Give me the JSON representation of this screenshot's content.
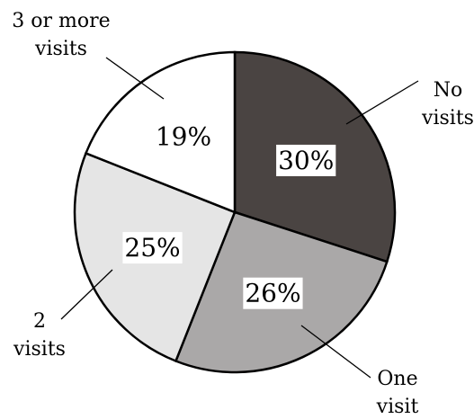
{
  "chart_data": {
    "type": "pie",
    "slices": [
      {
        "label_lines": [
          "No",
          "visits"
        ],
        "value": 30,
        "value_label": "30%",
        "color": "#4a4442"
      },
      {
        "label_lines": [
          "One",
          "visit"
        ],
        "value": 26,
        "value_label": "26%",
        "color": "#aaa8a8"
      },
      {
        "label_lines": [
          "2",
          "visits"
        ],
        "value": 25,
        "value_label": "25%",
        "color": "#e5e5e5"
      },
      {
        "label_lines": [
          "3 or more",
          "visits"
        ],
        "value": 19,
        "value_label": "19%",
        "color": "#ffffff"
      }
    ],
    "start": "12 o'clock",
    "direction": "clockwise",
    "legend": "none"
  }
}
